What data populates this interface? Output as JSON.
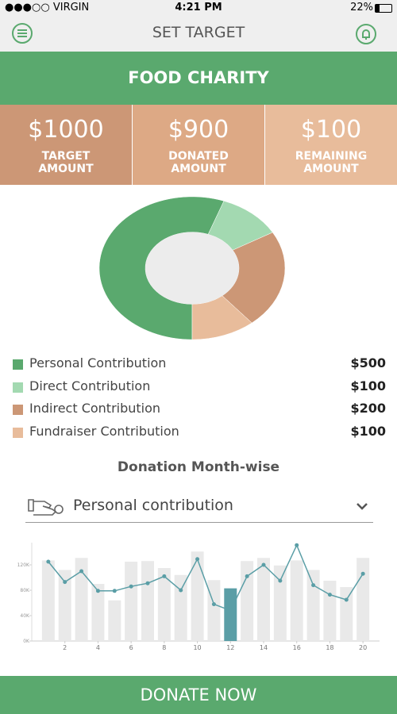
{
  "status_bar": {
    "carrier": "●●●○○ VIRGIN",
    "time": "4:21 PM",
    "battery": "22%"
  },
  "header": {
    "title": "SET TARGET"
  },
  "campaign": {
    "title": "FOOD CHARITY",
    "stats": [
      {
        "value": "$1000",
        "label": "TARGET AMOUNT"
      },
      {
        "value": "$900",
        "label": "DONATED AMOUNT"
      },
      {
        "value": "$100",
        "label": "REMAINING AMOUNT"
      }
    ]
  },
  "breakdown": {
    "items": [
      {
        "name": "Personal Contribution",
        "color": "#5aa96e",
        "amount": 500,
        "amount_label": "$500"
      },
      {
        "name": "Direct Contribution",
        "color": "#a3d9b1",
        "amount": 100,
        "amount_label": "$100"
      },
      {
        "name": "Indirect Contribution",
        "color": "#cc9776",
        "amount": 200,
        "amount_label": "$200"
      },
      {
        "name": "Fundraiser Contribution",
        "color": "#e8bc9b",
        "amount": 100,
        "amount_label": "$100"
      }
    ]
  },
  "filter": {
    "label": "Personal contribution"
  },
  "chart_data": {
    "type": "bar",
    "title": "Donation Month-wise",
    "x": [
      1,
      2,
      3,
      4,
      5,
      6,
      7,
      8,
      9,
      10,
      11,
      12,
      13,
      14,
      15,
      16,
      17,
      18,
      19,
      20
    ],
    "xlim": [
      0,
      21
    ],
    "xticks": [
      2,
      4,
      6,
      8,
      10,
      12,
      14,
      16,
      18,
      20
    ],
    "ylim": [
      0,
      155000
    ],
    "yticks": [
      {
        "value": 0,
        "label": "0K"
      },
      {
        "value": 40000,
        "label": "40K"
      },
      {
        "value": 80000,
        "label": "80K"
      },
      {
        "value": 120000,
        "label": "120K"
      }
    ],
    "highlight": 12,
    "highlight_color": "#5a9ea6",
    "series": [
      {
        "type": "bar",
        "color": "#e9e9e9",
        "values": [
          127000,
          112000,
          131000,
          90000,
          64000,
          125000,
          126000,
          115000,
          104000,
          141000,
          96000,
          83000,
          126000,
          131000,
          119000,
          127000,
          112000,
          95000,
          85000,
          131000
        ]
      },
      {
        "type": "line",
        "color": "#5a9ea6",
        "values": [
          125000,
          93000,
          110000,
          79000,
          79000,
          86000,
          91000,
          102000,
          80000,
          129000,
          58000,
          48000,
          102000,
          120000,
          95000,
          151000,
          88000,
          73000,
          65000,
          106000
        ]
      }
    ]
  },
  "button": {
    "label": "DONATE NOW"
  }
}
